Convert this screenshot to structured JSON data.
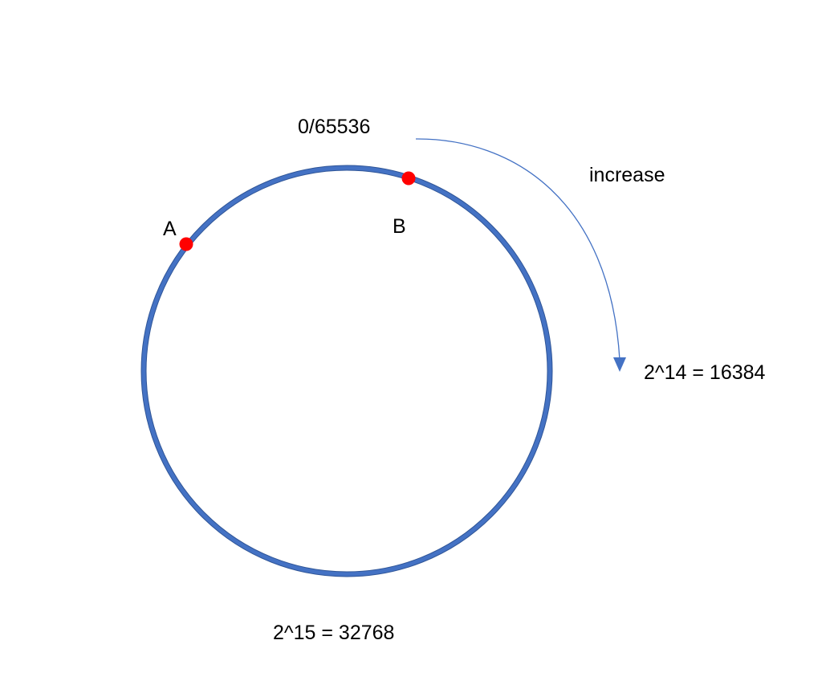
{
  "ring": {
    "labels": {
      "top": "0/65536",
      "right": "2^14 = 16384",
      "bottom": "2^15 = 32768"
    },
    "direction_label": "increase",
    "nodes": [
      {
        "name": "A",
        "color": "#ff0000"
      },
      {
        "name": "B",
        "color": "#ff0000"
      }
    ],
    "ring_color": "#4472c4",
    "ring_outline_color": "#2f5597",
    "arrow_color": "#4472c4"
  }
}
